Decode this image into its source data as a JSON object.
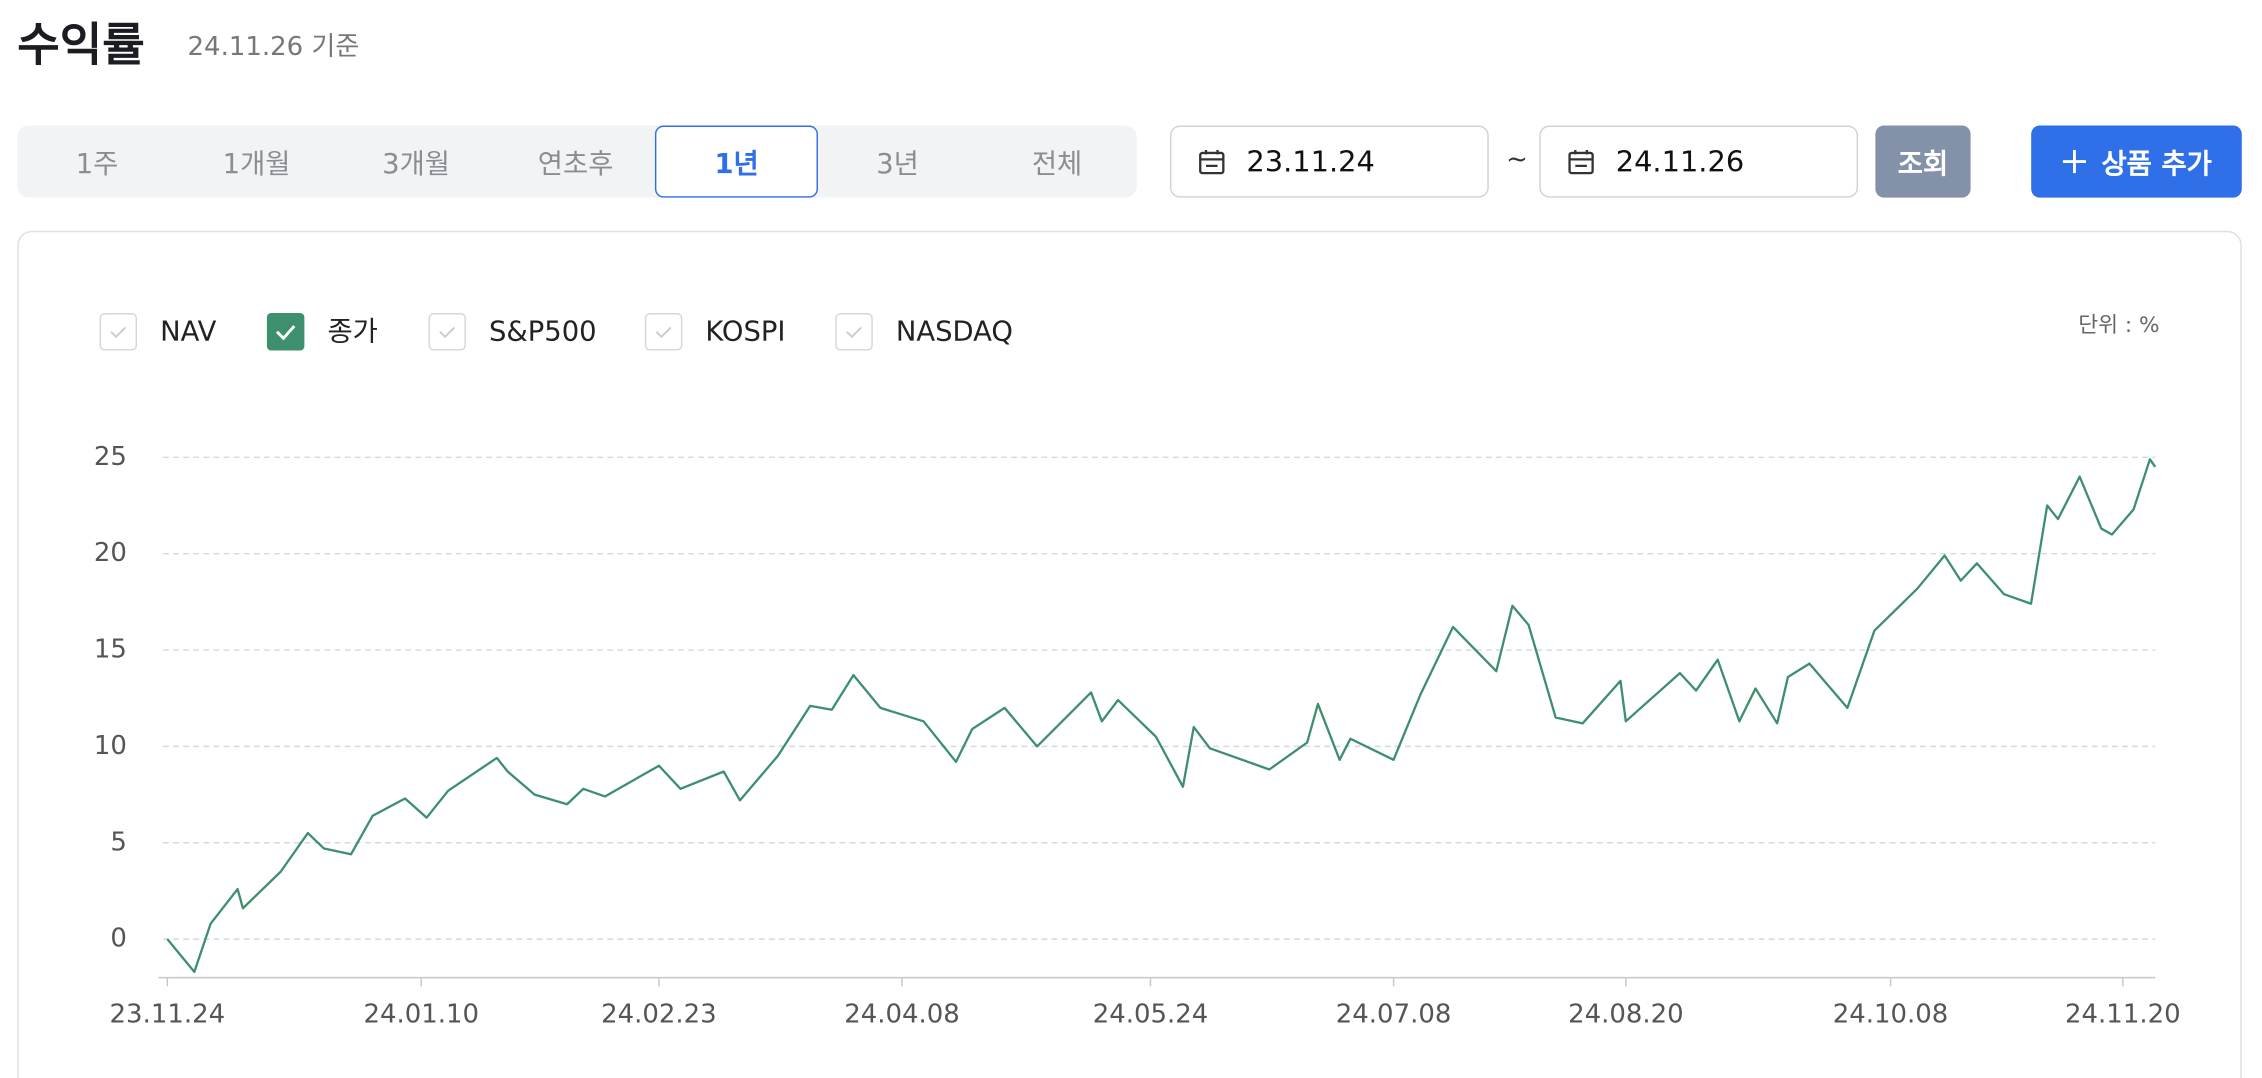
{
  "header": {
    "title": "수익률",
    "subtitle": "24.11.26 기준"
  },
  "tabs": [
    {
      "label": "1주",
      "active": false
    },
    {
      "label": "1개월",
      "active": false
    },
    {
      "label": "3개월",
      "active": false
    },
    {
      "label": "연초후",
      "active": false
    },
    {
      "label": "1년",
      "active": true
    },
    {
      "label": "3년",
      "active": false
    },
    {
      "label": "전체",
      "active": false
    }
  ],
  "date_range": {
    "start": "23.11.24",
    "separator": "~",
    "end": "24.11.26"
  },
  "buttons": {
    "search": "조회",
    "add": "상품 추가"
  },
  "chart_data": {
    "type": "line",
    "unit_label": "단위 : %",
    "legend": [
      {
        "name": "NAV",
        "checked": false
      },
      {
        "name": "종가",
        "checked": true
      },
      {
        "name": "S&P500",
        "checked": false
      },
      {
        "name": "KOSPI",
        "checked": false
      },
      {
        "name": "NASDAQ",
        "checked": false
      }
    ],
    "x": [
      "23.11.24",
      "23.11.29",
      "23.12.02",
      "23.12.07",
      "23.12.08",
      "23.12.15",
      "23.12.20",
      "23.12.23",
      "23.12.28",
      "24.01.01",
      "24.01.07",
      "24.01.11",
      "24.01.15",
      "24.01.24",
      "24.01.26",
      "24.01.31",
      "24.02.06",
      "24.02.09",
      "24.02.13",
      "24.02.23",
      "24.02.27",
      "24.03.06",
      "24.03.09",
      "24.03.16",
      "24.03.22",
      "24.03.26",
      "24.03.30",
      "24.04.04",
      "24.04.12",
      "24.04.18",
      "24.04.21",
      "24.04.27",
      "24.05.03",
      "24.05.13",
      "24.05.15",
      "24.05.18",
      "24.05.25",
      "24.05.30",
      "24.06.01",
      "24.06.04",
      "24.06.15",
      "24.06.22",
      "24.06.24",
      "24.06.28",
      "24.06.30",
      "24.07.08",
      "24.07.13",
      "24.07.19",
      "24.07.27",
      "24.07.30",
      "24.08.02",
      "24.08.07",
      "24.08.12",
      "24.08.19",
      "24.08.20",
      "24.08.30",
      "24.09.02",
      "24.09.06",
      "24.09.10",
      "24.09.13",
      "24.09.17",
      "24.09.19",
      "24.09.23",
      "24.09.30",
      "24.10.05",
      "24.10.13",
      "24.10.18",
      "24.10.21",
      "24.10.24",
      "24.10.29",
      "24.11.03",
      "24.11.06",
      "24.11.08",
      "24.11.12",
      "24.11.16",
      "24.11.18",
      "24.11.22",
      "24.11.25",
      "24.11.26"
    ],
    "series": [
      {
        "color": "#3d8f6e",
        "values": [
          0,
          -1.7,
          0.8,
          2.6,
          1.6,
          3.5,
          5.5,
          4.7,
          4.4,
          6.4,
          7.3,
          6.3,
          7.7,
          9.4,
          8.7,
          7.5,
          7.0,
          7.8,
          7.4,
          9.0,
          7.8,
          8.7,
          7.2,
          9.5,
          12.1,
          11.9,
          13.7,
          12.0,
          11.3,
          9.2,
          10.9,
          12.0,
          10.0,
          12.8,
          11.3,
          12.4,
          10.5,
          7.9,
          11.0,
          9.9,
          8.8,
          10.2,
          12.2,
          9.3,
          10.4,
          9.3,
          12.7,
          16.2,
          13.9,
          17.3,
          16.3,
          11.5,
          11.2,
          13.4,
          11.3,
          13.8,
          12.9,
          14.5,
          11.3,
          13.0,
          11.2,
          13.6,
          14.3,
          12.0,
          16.0,
          18.2,
          19.9,
          18.6,
          19.5,
          17.9,
          17.4,
          22.5,
          21.8,
          24.0,
          21.3,
          21.0,
          22.3,
          24.9,
          24.5
        ]
      }
    ],
    "xlim": [
      "23.11.24",
      "24.11.26"
    ],
    "xticks": [
      "23.11.24",
      "24.01.10",
      "24.02.23",
      "24.04.08",
      "24.05.24",
      "24.07.08",
      "24.08.20",
      "24.10.08",
      "24.11.20"
    ],
    "ylim": [
      -2,
      27
    ],
    "yticks": [
      0,
      5,
      10,
      15,
      20,
      25
    ],
    "grid": true
  }
}
